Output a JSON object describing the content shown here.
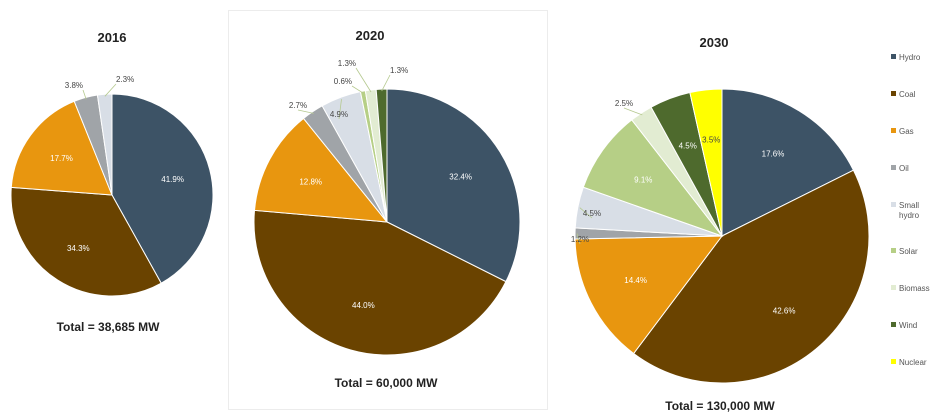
{
  "legend": [
    {
      "name": "Hydro",
      "color": "#3d5366"
    },
    {
      "name": "Coal",
      "color": "#6a4300"
    },
    {
      "name": "Gas",
      "color": "#e8960f"
    },
    {
      "name": "Oil",
      "color": "#a0a4a8"
    },
    {
      "name": "Small hydro",
      "lines": [
        "Small",
        "hydro"
      ],
      "color": "#d8dee6"
    },
    {
      "name": "Solar",
      "color": "#b6cf86"
    },
    {
      "name": "Biomass",
      "color": "#e2ecd2"
    },
    {
      "name": "Wind",
      "color": "#4e6a2d"
    },
    {
      "name": "Nuclear",
      "color": "#ffff00"
    }
  ],
  "chart_data": [
    {
      "type": "pie",
      "title": "2016",
      "total_label": "Total = 38,685 MW",
      "slices": [
        {
          "name": "Hydro",
          "value": 41.9,
          "label": "41.9%"
        },
        {
          "name": "Coal",
          "value": 34.3,
          "label": "34.3%"
        },
        {
          "name": "Gas",
          "value": 17.7,
          "label": "17.7%"
        },
        {
          "name": "Oil",
          "value": 3.8,
          "label": "3.8%"
        },
        {
          "name": "Small hydro",
          "value": 2.3,
          "label": "2.3%"
        }
      ]
    },
    {
      "type": "pie",
      "title": "2020",
      "total_label": "Total = 60,000 MW",
      "slices": [
        {
          "name": "Hydro",
          "value": 32.4,
          "label": "32.4%"
        },
        {
          "name": "Coal",
          "value": 44.0,
          "label": "44.0%"
        },
        {
          "name": "Gas",
          "value": 12.8,
          "label": "12.8%"
        },
        {
          "name": "Oil",
          "value": 2.7,
          "label": "2.7%"
        },
        {
          "name": "Small hydro",
          "value": 4.9,
          "label": "4.9%"
        },
        {
          "name": "Solar",
          "value": 0.6,
          "label": "0.6%"
        },
        {
          "name": "Biomass",
          "value": 1.3,
          "label": "1.3%"
        },
        {
          "name": "Wind",
          "value": 1.3,
          "label": "1.3%"
        }
      ]
    },
    {
      "type": "pie",
      "title": "2030",
      "total_label": "Total = 130,000 MW",
      "slices": [
        {
          "name": "Hydro",
          "value": 17.6,
          "label": "17.6%"
        },
        {
          "name": "Coal",
          "value": 42.6,
          "label": "42.6%"
        },
        {
          "name": "Gas",
          "value": 14.4,
          "label": "14.4%"
        },
        {
          "name": "Oil",
          "value": 1.2,
          "label": "1.2%"
        },
        {
          "name": "Small hydro",
          "value": 4.5,
          "label": "4.5%"
        },
        {
          "name": "Solar",
          "value": 9.1,
          "label": "9.1%"
        },
        {
          "name": "Biomass",
          "value": 2.5,
          "label": "2.5%"
        },
        {
          "name": "Wind",
          "value": 4.5,
          "label": "4.5%"
        },
        {
          "name": "Nuclear",
          "value": 3.5,
          "label": "3.5%"
        }
      ]
    }
  ]
}
